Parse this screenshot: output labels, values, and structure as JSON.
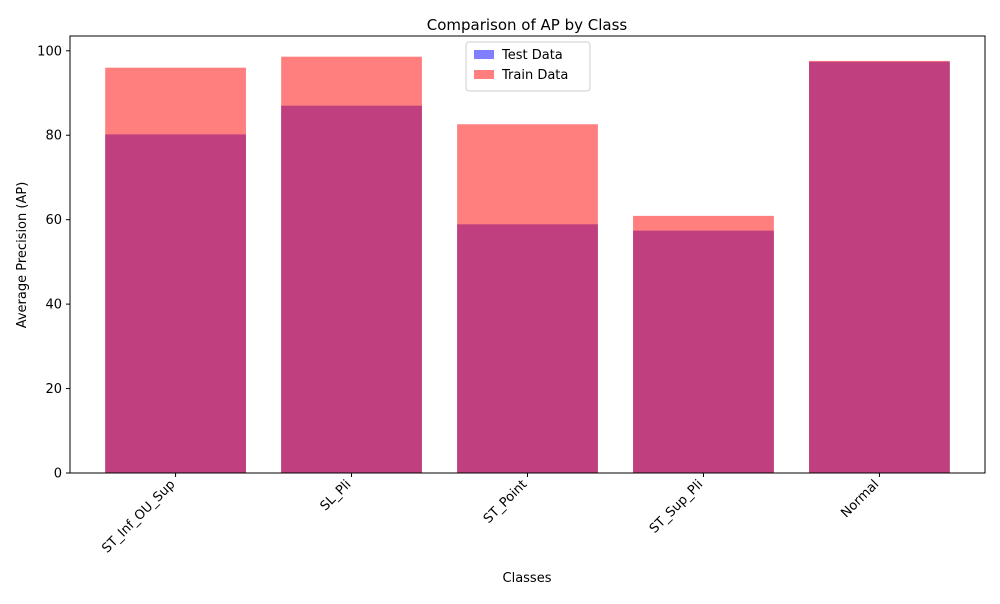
{
  "chart_data": {
    "type": "bar",
    "title": "Comparison of AP by Class",
    "xlabel": "Classes",
    "ylabel": "Average Precision (AP)",
    "categories": [
      "ST_Inf_OU_Sup",
      "SL_Pli",
      "ST_Point",
      "ST_Sup_Pli",
      "Normal"
    ],
    "ylim": [
      0,
      103.5
    ],
    "yticks": [
      0,
      20,
      40,
      60,
      80,
      100
    ],
    "grid": false,
    "legend_position": "top-center",
    "overlay": true,
    "series": [
      {
        "name": "Test Data",
        "color": "#0000ff",
        "opacity": 0.5,
        "values": [
          80.2,
          87.0,
          58.9,
          57.4,
          97.4
        ]
      },
      {
        "name": "Train Data",
        "color": "#ff0000",
        "opacity": 0.5,
        "values": [
          96.0,
          98.6,
          82.6,
          60.9,
          97.6
        ]
      }
    ]
  }
}
